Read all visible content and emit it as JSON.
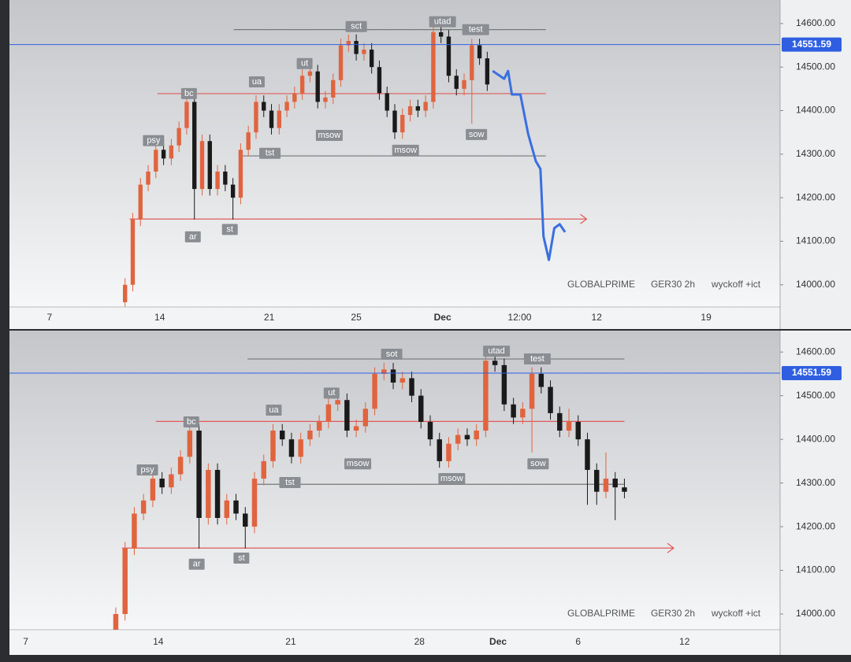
{
  "chart_data": [
    {
      "type": "candlestick",
      "source": "GLOBALPRIME",
      "symbol": "GER30 2h",
      "note": "wyckoff +ict",
      "up_color": "#e0643f",
      "down_color": "#1a1a1a",
      "xlim": [
        0,
        100
      ],
      "xticks": [
        {
          "value": 5.2,
          "label": "7"
        },
        {
          "value": 19.5,
          "label": "14"
        },
        {
          "value": 33.7,
          "label": "21"
        },
        {
          "value": 45,
          "label": "25"
        },
        {
          "value": 56.2,
          "label": "Dec"
        },
        {
          "value": 66.2,
          "label": "12:00"
        },
        {
          "value": 76.2,
          "label": "12"
        },
        {
          "value": 90.4,
          "label": "19"
        }
      ],
      "ylim": [
        13949,
        14654
      ],
      "yticks": [
        {
          "value": 14000,
          "label": "14000.00"
        },
        {
          "value": 14100,
          "label": "14100.00"
        },
        {
          "value": 14200,
          "label": "14200.00"
        },
        {
          "value": 14300,
          "label": "14300.00"
        },
        {
          "value": 14400,
          "label": "14400.00"
        },
        {
          "value": 14500,
          "label": "14500.00"
        },
        {
          "value": 14600,
          "label": "14600.00"
        }
      ],
      "last_price": 14551.59,
      "last_price_color": "#2f5fe0",
      "x": [
        15,
        16,
        17,
        18,
        19,
        20,
        21,
        22,
        23,
        24,
        25,
        26,
        27,
        28,
        29,
        30,
        31,
        32,
        33,
        34,
        35,
        36,
        37,
        38,
        39,
        40,
        41,
        42,
        43,
        44,
        45,
        46,
        47,
        48,
        49,
        50,
        51,
        52,
        53,
        54,
        55,
        56,
        57,
        58,
        59,
        60,
        61,
        62
      ],
      "open": [
        13960,
        14000,
        14150,
        14230,
        14260,
        14310,
        14290,
        14320,
        14360,
        14420,
        14220,
        14330,
        14220,
        14260,
        14230,
        14200,
        14310,
        14350,
        14420,
        14400,
        14360,
        14400,
        14420,
        14440,
        14480,
        14490,
        14420,
        14430,
        14470,
        14550,
        14560,
        14530,
        14540,
        14500,
        14440,
        14400,
        14350,
        14390,
        14410,
        14400,
        14420,
        14580,
        14570,
        14480,
        14450,
        14470,
        14550,
        14520
      ],
      "high": [
        14015,
        14165,
        14245,
        14275,
        14325,
        14325,
        14335,
        14375,
        14440,
        14435,
        14345,
        14345,
        14275,
        14275,
        14245,
        14325,
        14365,
        14435,
        14435,
        14415,
        14415,
        14435,
        14455,
        14495,
        14505,
        14505,
        14445,
        14485,
        14565,
        14575,
        14575,
        14555,
        14555,
        14515,
        14455,
        14415,
        14405,
        14425,
        14425,
        14435,
        14595,
        14595,
        14585,
        14495,
        14485,
        14565,
        14565,
        14535
      ],
      "low": [
        13950,
        13985,
        14135,
        14215,
        14245,
        14275,
        14275,
        14305,
        14345,
        14150,
        14205,
        14205,
        14205,
        14215,
        14150,
        14185,
        14295,
        14335,
        14385,
        14345,
        14345,
        14385,
        14405,
        14425,
        14465,
        14405,
        14405,
        14415,
        14455,
        14535,
        14515,
        14515,
        14485,
        14425,
        14385,
        14335,
        14335,
        14375,
        14385,
        14385,
        14405,
        14555,
        14465,
        14435,
        14435,
        14370,
        14505,
        14445
      ],
      "close": [
        14000,
        14150,
        14230,
        14260,
        14310,
        14290,
        14320,
        14360,
        14420,
        14220,
        14330,
        14220,
        14260,
        14230,
        14200,
        14310,
        14350,
        14420,
        14400,
        14360,
        14400,
        14420,
        14440,
        14480,
        14490,
        14420,
        14430,
        14470,
        14550,
        14560,
        14530,
        14540,
        14500,
        14440,
        14400,
        14350,
        14390,
        14410,
        14400,
        14420,
        14580,
        14570,
        14480,
        14450,
        14470,
        14550,
        14520,
        14460
      ],
      "projection": {
        "color": "#3a6fe0",
        "x": [
          62.7,
          64.2,
          64.7,
          65.2,
          66.3,
          67.3,
          68.3,
          68.9,
          69.3,
          70.0,
          70.7,
          71.4,
          72.1
        ],
        "values": [
          14491,
          14473,
          14491,
          14437,
          14437,
          14347,
          14284,
          14266,
          14111,
          14057,
          14130,
          14139,
          14121
        ]
      },
      "levels": [
        {
          "y": 14586,
          "x": [
            29.1,
            69.6
          ],
          "color": "#777777",
          "arrow": false
        },
        {
          "y": 14439,
          "x": [
            19.2,
            69.6
          ],
          "color": "#e05a5a",
          "arrow": false
        },
        {
          "y": 14296,
          "x": [
            30.0,
            69.6
          ],
          "color": "#777777",
          "arrow": false
        },
        {
          "y": 14151,
          "x": [
            15.6,
            74.9
          ],
          "color": "#e05a5a",
          "arrow": true
        }
      ],
      "annotations": [
        {
          "text": "psy",
          "x": 18.7,
          "y": 14331
        },
        {
          "text": "bc",
          "x": 23.3,
          "y": 14439
        },
        {
          "text": "ar",
          "x": 23.8,
          "y": 14110
        },
        {
          "text": "st",
          "x": 28.6,
          "y": 14127
        },
        {
          "text": "ua",
          "x": 32.1,
          "y": 14466
        },
        {
          "text": "ut",
          "x": 38.3,
          "y": 14508
        },
        {
          "text": "tst",
          "x": 33.8,
          "y": 14302
        },
        {
          "text": "msow",
          "x": 41.5,
          "y": 14343
        },
        {
          "text": "sct",
          "x": 45.0,
          "y": 14593
        },
        {
          "text": "msow",
          "x": 51.4,
          "y": 14309
        },
        {
          "text": "utad",
          "x": 56.2,
          "y": 14604
        },
        {
          "text": "test",
          "x": 60.5,
          "y": 14586
        },
        {
          "text": "sow",
          "x": 60.6,
          "y": 14345
        }
      ]
    },
    {
      "type": "candlestick",
      "source": "GLOBALPRIME",
      "symbol": "GER30 2h",
      "note": "wyckoff +ict",
      "up_color": "#e0643f",
      "down_color": "#1a1a1a",
      "xlim": [
        0,
        100
      ],
      "xticks": [
        {
          "value": 2.1,
          "label": "7"
        },
        {
          "value": 19.3,
          "label": "14"
        },
        {
          "value": 36.5,
          "label": "21"
        },
        {
          "value": 53.2,
          "label": "28"
        },
        {
          "value": 63.4,
          "label": "Dec"
        },
        {
          "value": 73.8,
          "label": "6"
        },
        {
          "value": 87.6,
          "label": "12"
        }
      ],
      "ylim": [
        13964,
        14649
      ],
      "yticks": [
        {
          "value": 14000,
          "label": "14000.00"
        },
        {
          "value": 14100,
          "label": "14100.00"
        },
        {
          "value": 14200,
          "label": "14200.00"
        },
        {
          "value": 14300,
          "label": "14300.00"
        },
        {
          "value": 14400,
          "label": "14400.00"
        },
        {
          "value": 14500,
          "label": "14500.00"
        },
        {
          "value": 14600,
          "label": "14600.00"
        }
      ],
      "last_price": 14551.59,
      "last_price_color": "#2f5fe0",
      "x": [
        13.8,
        15.0,
        16.2,
        17.4,
        18.6,
        19.8,
        21.0,
        22.2,
        23.4,
        24.6,
        25.8,
        27.0,
        28.2,
        29.4,
        30.6,
        31.8,
        33.0,
        34.2,
        35.4,
        36.6,
        37.8,
        39.0,
        40.2,
        41.4,
        42.6,
        43.8,
        45.0,
        46.2,
        47.4,
        48.6,
        49.8,
        51.0,
        52.2,
        53.4,
        54.6,
        55.8,
        57.0,
        58.2,
        59.4,
        60.6,
        61.8,
        63.0,
        64.2,
        65.4,
        66.6,
        67.8,
        69.0,
        70.2,
        71.4,
        72.6,
        73.8,
        75.0,
        76.2,
        77.4,
        78.6,
        79.8
      ],
      "open": [
        13960,
        14000,
        14150,
        14230,
        14260,
        14310,
        14290,
        14320,
        14360,
        14420,
        14220,
        14330,
        14220,
        14260,
        14230,
        14200,
        14310,
        14350,
        14420,
        14400,
        14360,
        14400,
        14420,
        14440,
        14480,
        14490,
        14420,
        14430,
        14470,
        14550,
        14560,
        14530,
        14540,
        14500,
        14440,
        14400,
        14350,
        14390,
        14410,
        14400,
        14420,
        14580,
        14570,
        14480,
        14450,
        14470,
        14550,
        14520,
        14460,
        14420,
        14440,
        14400,
        14330,
        14280,
        14310,
        14290
      ],
      "high": [
        14015,
        14165,
        14245,
        14275,
        14325,
        14325,
        14335,
        14375,
        14440,
        14435,
        14345,
        14345,
        14275,
        14275,
        14245,
        14325,
        14365,
        14435,
        14435,
        14415,
        14415,
        14435,
        14455,
        14495,
        14505,
        14505,
        14445,
        14485,
        14565,
        14575,
        14575,
        14555,
        14555,
        14515,
        14455,
        14415,
        14405,
        14425,
        14425,
        14435,
        14595,
        14595,
        14585,
        14495,
        14485,
        14565,
        14565,
        14535,
        14475,
        14470,
        14455,
        14415,
        14345,
        14370,
        14325,
        14310
      ],
      "low": [
        13965,
        13985,
        14135,
        14215,
        14245,
        14275,
        14275,
        14305,
        14345,
        14150,
        14205,
        14205,
        14205,
        14215,
        14150,
        14185,
        14295,
        14335,
        14385,
        14345,
        14345,
        14385,
        14405,
        14425,
        14465,
        14405,
        14405,
        14415,
        14455,
        14535,
        14515,
        14515,
        14485,
        14425,
        14385,
        14335,
        14335,
        14375,
        14385,
        14385,
        14405,
        14555,
        14465,
        14435,
        14435,
        14370,
        14505,
        14445,
        14405,
        14405,
        14385,
        14250,
        14250,
        14265,
        14215,
        14265
      ],
      "close": [
        14000,
        14150,
        14230,
        14260,
        14310,
        14290,
        14320,
        14360,
        14420,
        14220,
        14330,
        14220,
        14260,
        14230,
        14200,
        14310,
        14350,
        14420,
        14400,
        14360,
        14400,
        14420,
        14440,
        14480,
        14490,
        14420,
        14430,
        14470,
        14550,
        14560,
        14530,
        14540,
        14500,
        14440,
        14400,
        14350,
        14390,
        14410,
        14400,
        14420,
        14580,
        14570,
        14480,
        14450,
        14470,
        14550,
        14520,
        14460,
        14420,
        14440,
        14400,
        14330,
        14280,
        14310,
        14290,
        14280
      ],
      "levels": [
        {
          "y": 14584,
          "x": [
            30.9,
            79.8
          ],
          "color": "#777777",
          "arrow": false
        },
        {
          "y": 14441,
          "x": [
            19.0,
            79.8
          ],
          "color": "#e05a5a",
          "arrow": false
        },
        {
          "y": 14297,
          "x": [
            31.5,
            79.8
          ],
          "color": "#777777",
          "arrow": false
        },
        {
          "y": 14151,
          "x": [
            14.6,
            86.2
          ],
          "color": "#e05a5a",
          "arrow": true
        }
      ],
      "annotations": [
        {
          "text": "psy",
          "x": 17.9,
          "y": 14330
        },
        {
          "text": "bc",
          "x": 23.6,
          "y": 14440
        },
        {
          "text": "ar",
          "x": 24.3,
          "y": 14114
        },
        {
          "text": "st",
          "x": 30.1,
          "y": 14128
        },
        {
          "text": "ua",
          "x": 34.3,
          "y": 14467
        },
        {
          "text": "ut",
          "x": 41.8,
          "y": 14506
        },
        {
          "text": "tst",
          "x": 36.4,
          "y": 14301
        },
        {
          "text": "msow",
          "x": 45.2,
          "y": 14344
        },
        {
          "text": "sot",
          "x": 49.6,
          "y": 14595
        },
        {
          "text": "msow",
          "x": 57.4,
          "y": 14310
        },
        {
          "text": "utad",
          "x": 63.2,
          "y": 14602
        },
        {
          "text": "test",
          "x": 68.5,
          "y": 14584
        },
        {
          "text": "sow",
          "x": 68.6,
          "y": 14344
        }
      ]
    }
  ]
}
